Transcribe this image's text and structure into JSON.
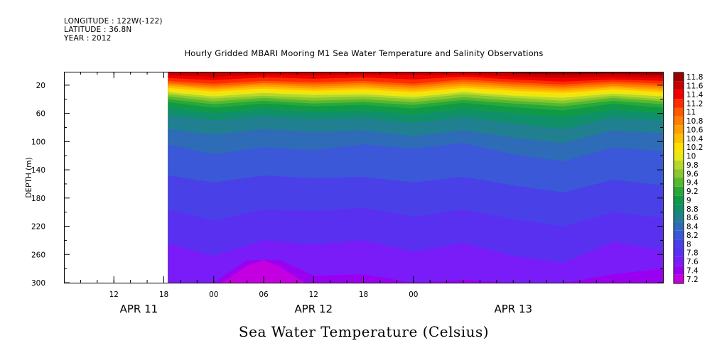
{
  "header": {
    "longitude": "LONGITUDE : 122W(-122)",
    "latitude": "LATITUDE : 36.8N",
    "year": "YEAR : 2012"
  },
  "chart_data": {
    "type": "heatmap",
    "title": "Hourly Gridded MBARI Mooring M1 Sea Water Temperature and Salinity Observations",
    "xlabel": "Sea Water Temperature (Celsius)",
    "ylabel": "DEPTH (m)",
    "x_unit": "hours since APR 11 00:00",
    "xlim": [
      6,
      78
    ],
    "data_start_hour": 18.5,
    "ylim": [
      300,
      1
    ],
    "yticks": [
      20,
      60,
      100,
      140,
      180,
      220,
      260,
      300
    ],
    "xticks": [
      {
        "hour": 12,
        "label": "12"
      },
      {
        "hour": 18,
        "label": "18"
      },
      {
        "hour": 24,
        "label": "00"
      },
      {
        "hour": 30,
        "label": "06"
      },
      {
        "hour": 36,
        "label": "12"
      },
      {
        "hour": 42,
        "label": "18"
      },
      {
        "hour": 48,
        "label": "00"
      }
    ],
    "day_labels": [
      {
        "hour": 15,
        "label": "APR 11"
      },
      {
        "hour": 36,
        "label": "APR 12"
      },
      {
        "hour": 60,
        "label": "APR 13"
      }
    ],
    "colorbar": {
      "levels": [
        "7.2",
        "7.4",
        "7.6",
        "7.8",
        "8",
        "8.2",
        "8.4",
        "8.6",
        "8.8",
        "9",
        "9.2",
        "9.4",
        "9.6",
        "9.8",
        "10",
        "10.2",
        "10.4",
        "10.6",
        "10.8",
        "11",
        "11.2",
        "11.4",
        "11.6",
        "11.8"
      ],
      "colors": [
        "#c400e0",
        "#9a00f0",
        "#7a1cf8",
        "#5a30f0",
        "#4a40e8",
        "#3a58d8",
        "#2e6cb8",
        "#208090",
        "#10906a",
        "#109a48",
        "#28a838",
        "#58b830",
        "#88c830",
        "#b8d828",
        "#e8e818",
        "#ffe000",
        "#ffc000",
        "#ffa000",
        "#ff8000",
        "#ff5a00",
        "#ff2c00",
        "#f00000",
        "#c80000",
        "#9a0000"
      ]
    },
    "isotherms": [
      {
        "value": 11.8,
        "x": [
          60,
          66,
          72,
          78
        ],
        "depth": [
          1,
          2,
          2,
          3
        ]
      },
      {
        "value": 11.6,
        "x": [
          18.5,
          24,
          30,
          36,
          42,
          48,
          54,
          60,
          66,
          72,
          78
        ],
        "depth": [
          2,
          4,
          3,
          4,
          3,
          4,
          3,
          4,
          5,
          4,
          6
        ]
      },
      {
        "value": 11.4,
        "x": [
          18.5,
          24,
          30,
          36,
          42,
          48,
          54,
          60,
          66,
          72,
          78
        ],
        "depth": [
          6,
          8,
          5,
          6,
          5,
          6,
          5,
          8,
          10,
          8,
          10
        ]
      },
      {
        "value": 11.2,
        "x": [
          18.5,
          24,
          30,
          36,
          42,
          48,
          54,
          60,
          66,
          72,
          78
        ],
        "depth": [
          10,
          13,
          9,
          11,
          9,
          12,
          8,
          12,
          15,
          12,
          14
        ]
      },
      {
        "value": 11.0,
        "x": [
          18.5,
          24,
          30,
          36,
          42,
          48,
          54,
          60,
          66,
          72,
          78
        ],
        "depth": [
          14,
          18,
          14,
          16,
          14,
          18,
          12,
          16,
          19,
          15,
          18
        ]
      },
      {
        "value": 10.8,
        "x": [
          18.5,
          24,
          30,
          36,
          42,
          48,
          54,
          60,
          66,
          72,
          78
        ],
        "depth": [
          17,
          21,
          17,
          19,
          17,
          21,
          15,
          19,
          22,
          18,
          21
        ]
      },
      {
        "value": 10.6,
        "x": [
          18.5,
          24,
          30,
          36,
          42,
          48,
          54,
          60,
          66,
          72,
          78
        ],
        "depth": [
          19,
          24,
          19,
          22,
          20,
          24,
          18,
          22,
          25,
          21,
          24
        ]
      },
      {
        "value": 10.4,
        "x": [
          18.5,
          24,
          30,
          36,
          42,
          48,
          54,
          60,
          66,
          72,
          78
        ],
        "depth": [
          21,
          26,
          22,
          25,
          23,
          27,
          21,
          25,
          28,
          23,
          27
        ]
      },
      {
        "value": 10.2,
        "x": [
          18.5,
          24,
          30,
          36,
          42,
          48,
          54,
          60,
          66,
          72,
          78
        ],
        "depth": [
          24,
          29,
          25,
          28,
          26,
          30,
          24,
          28,
          31,
          26,
          30
        ]
      },
      {
        "value": 10.0,
        "x": [
          18.5,
          24,
          30,
          36,
          42,
          48,
          54,
          60,
          66,
          72,
          78
        ],
        "depth": [
          27,
          32,
          28,
          31,
          29,
          33,
          27,
          31,
          34,
          29,
          33
        ]
      },
      {
        "value": 9.8,
        "x": [
          18.5,
          24,
          30,
          36,
          42,
          48,
          54,
          60,
          66,
          72,
          78
        ],
        "depth": [
          30,
          36,
          31,
          34,
          33,
          37,
          30,
          35,
          38,
          32,
          36
        ]
      },
      {
        "value": 9.6,
        "x": [
          18.5,
          24,
          30,
          36,
          42,
          48,
          54,
          60,
          66,
          72,
          78
        ],
        "depth": [
          33,
          39,
          35,
          38,
          36,
          40,
          33,
          38,
          42,
          35,
          40
        ]
      },
      {
        "value": 9.4,
        "x": [
          18.5,
          24,
          30,
          36,
          42,
          48,
          54,
          60,
          66,
          72,
          78
        ],
        "depth": [
          36,
          43,
          38,
          42,
          40,
          44,
          37,
          42,
          46,
          38,
          43
        ]
      },
      {
        "value": 9.2,
        "x": [
          18.5,
          24,
          30,
          36,
          42,
          48,
          54,
          60,
          66,
          72,
          78
        ],
        "depth": [
          40,
          47,
          42,
          46,
          44,
          48,
          41,
          46,
          50,
          42,
          47
        ]
      },
      {
        "value": 9.0,
        "x": [
          18.5,
          24,
          30,
          36,
          42,
          48,
          54,
          60,
          66,
          72,
          78
        ],
        "depth": [
          44,
          52,
          46,
          50,
          48,
          53,
          45,
          51,
          56,
          46,
          52
        ]
      },
      {
        "value": 8.8,
        "x": [
          18.5,
          24,
          30,
          36,
          42,
          48,
          54,
          60,
          66,
          72,
          78
        ],
        "depth": [
          52,
          60,
          54,
          58,
          56,
          62,
          54,
          60,
          66,
          55,
          60
        ]
      },
      {
        "value": 8.6,
        "x": [
          18.5,
          24,
          30,
          36,
          42,
          48,
          54,
          60,
          66,
          72,
          78
        ],
        "depth": [
          62,
          70,
          64,
          68,
          66,
          74,
          65,
          74,
          82,
          66,
          70
        ]
      },
      {
        "value": 8.4,
        "x": [
          18.5,
          24,
          30,
          36,
          42,
          48,
          54,
          60,
          66,
          72,
          78
        ],
        "depth": [
          82,
          90,
          82,
          86,
          84,
          92,
          84,
          94,
          102,
          84,
          88
        ]
      },
      {
        "value": 8.2,
        "x": [
          18.5,
          24,
          30,
          36,
          42,
          48,
          54,
          60,
          66,
          72,
          78
        ],
        "depth": [
          104,
          118,
          108,
          112,
          104,
          110,
          102,
          118,
          128,
          108,
          114
        ]
      },
      {
        "value": 8.0,
        "x": [
          18.5,
          24,
          30,
          36,
          42,
          48,
          54,
          60,
          66,
          72,
          78
        ],
        "depth": [
          148,
          158,
          148,
          152,
          150,
          158,
          150,
          162,
          172,
          154,
          162
        ]
      },
      {
        "value": 7.8,
        "x": [
          18.5,
          24,
          30,
          36,
          42,
          48,
          54,
          60,
          66,
          72,
          78
        ],
        "depth": [
          196,
          212,
          196,
          198,
          194,
          206,
          196,
          210,
          220,
          200,
          208
        ]
      },
      {
        "value": 7.6,
        "x": [
          18.5,
          24,
          30,
          36,
          42,
          48,
          54,
          60,
          66,
          72,
          78
        ],
        "depth": [
          244,
          262,
          240,
          246,
          240,
          256,
          244,
          262,
          272,
          242,
          254
        ]
      },
      {
        "value": 7.4,
        "x": [
          18.5,
          24,
          28,
          32,
          36,
          42,
          48,
          54,
          60,
          66,
          72,
          78
        ],
        "depth": [
          300,
          300,
          268,
          268,
          290,
          288,
          300,
          296,
          300,
          300,
          288,
          280
        ]
      },
      {
        "value": 7.2,
        "x": [
          25,
          28,
          30,
          32,
          35
        ],
        "depth": [
          300,
          276,
          268,
          278,
          300
        ]
      }
    ]
  }
}
